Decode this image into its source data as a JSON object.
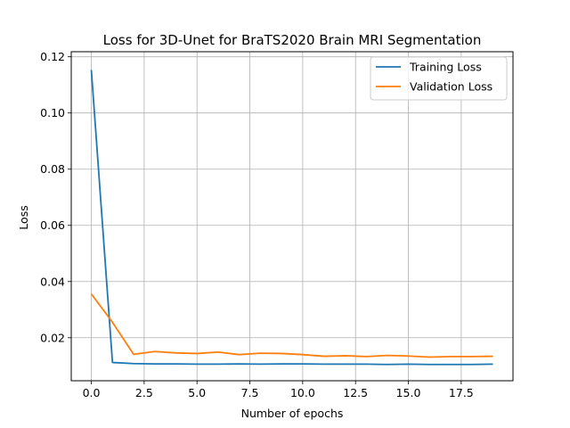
{
  "chart_data": {
    "type": "line",
    "title": "Loss for 3D-Unet for BraTS2020 Brain MRI Segmentation",
    "xlabel": "Number of epochs",
    "ylabel": "Loss",
    "xlim": [
      -0.95,
      19.95
    ],
    "ylim": [
      0.0047,
      0.1218
    ],
    "xticks": [
      0.0,
      2.5,
      5.0,
      7.5,
      10.0,
      12.5,
      15.0,
      17.5
    ],
    "xtick_labels": [
      "0.0",
      "2.5",
      "5.0",
      "7.5",
      "10.0",
      "12.5",
      "15.0",
      "17.5"
    ],
    "yticks": [
      0.02,
      0.04,
      0.06,
      0.08,
      0.1,
      0.12
    ],
    "ytick_labels": [
      "0.02",
      "0.04",
      "0.06",
      "0.08",
      "0.10",
      "0.12"
    ],
    "grid": true,
    "legend_position": "top-right",
    "x": [
      0,
      1,
      2,
      3,
      4,
      5,
      6,
      7,
      8,
      9,
      10,
      11,
      12,
      13,
      14,
      15,
      16,
      17,
      18,
      19
    ],
    "series": [
      {
        "name": "Training Loss",
        "color": "#1f77b4",
        "values": [
          0.1153,
          0.0112,
          0.0108,
          0.0107,
          0.0107,
          0.0106,
          0.0106,
          0.0107,
          0.0106,
          0.0107,
          0.0107,
          0.0106,
          0.0106,
          0.0106,
          0.0105,
          0.0106,
          0.0105,
          0.0105,
          0.0105,
          0.0106
        ]
      },
      {
        "name": "Validation Loss",
        "color": "#ff7f0e",
        "values": [
          0.0356,
          0.0255,
          0.0141,
          0.0151,
          0.0146,
          0.0144,
          0.0149,
          0.014,
          0.0145,
          0.0144,
          0.014,
          0.0134,
          0.0136,
          0.0133,
          0.0137,
          0.0135,
          0.0131,
          0.0133,
          0.0133,
          0.0134
        ]
      }
    ]
  }
}
